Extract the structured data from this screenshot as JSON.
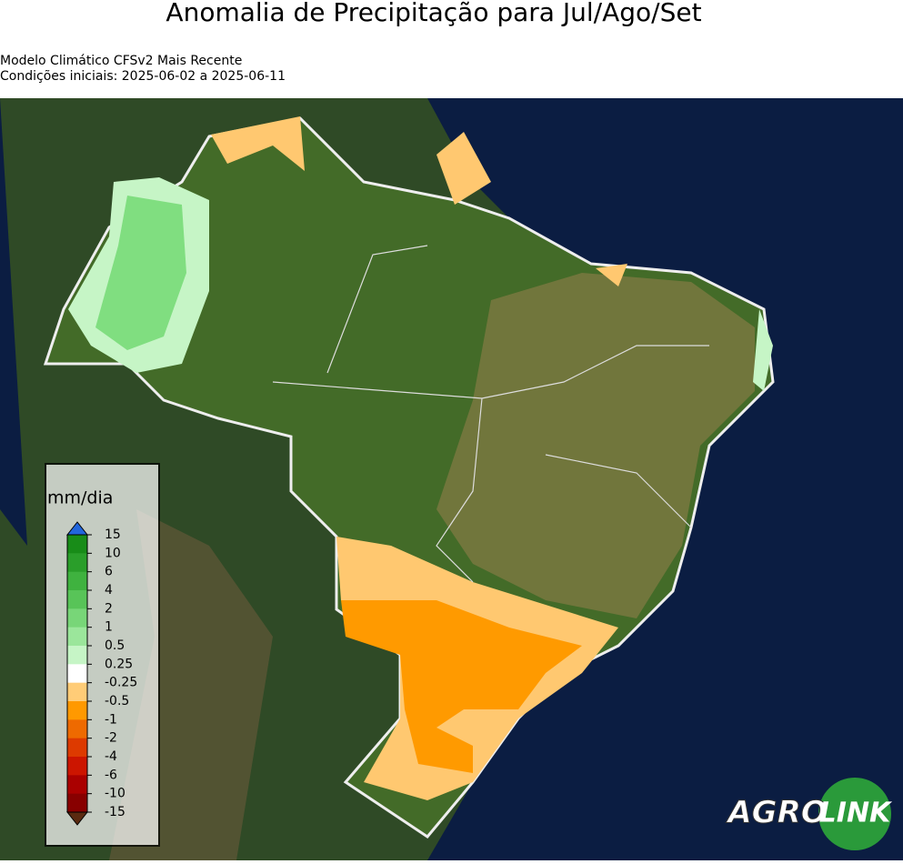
{
  "header": {
    "title": "Anomalia de Precipitação para Jul/Ago/Set",
    "subtitle_lines": [
      "Modelo Climático CFSv2 Mais Recente",
      "Condições iniciais: 2025-06-02 a 2025-06-11"
    ]
  },
  "colorbar": {
    "label": "mm/dia",
    "ticks": [
      15,
      10,
      6,
      4,
      2,
      1,
      0.5,
      0.25,
      -0.25,
      -0.5,
      -1,
      -2,
      -4,
      -6,
      -10,
      -15
    ],
    "colors": [
      "#188c18",
      "#2a9e2a",
      "#3fb23f",
      "#58c458",
      "#78d678",
      "#9be69b",
      "#c6f5c6",
      "#ffffff",
      "#ffcc77",
      "#ff9900",
      "#ee6a00",
      "#dd3a00",
      "#cc1500",
      "#aa0000",
      "#880000"
    ],
    "extend_max_color": "#2266dd",
    "extend_min_color": "#5a2a10"
  },
  "logo": {
    "part1": "AGRO",
    "part2": "LINK"
  }
}
